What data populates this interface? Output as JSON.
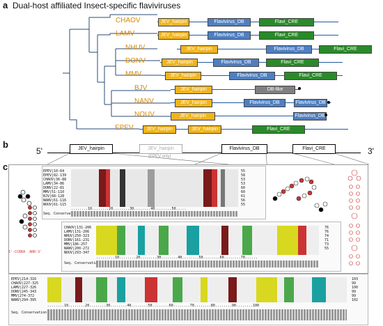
{
  "panel_a": {
    "letter": "a",
    "title": "Dual-host affiliated Insect-specific flaviviruses",
    "viruses": [
      {
        "name": "CHAOV",
        "domains": [
          "JEV_hairpin",
          "Flavivirus_DB",
          "Flavi_CRE"
        ]
      },
      {
        "name": "LAMV",
        "domains": [
          "JEV_hairpin",
          "Flavivirus_DB",
          "Flavi_CRE"
        ]
      },
      {
        "name": "NHUV",
        "domains": [
          "JEV_hairpin",
          "Flavivirus_DB",
          "Flavi_CRE"
        ]
      },
      {
        "name": "DONV",
        "domains": [
          "JEV_hairpin",
          "Flavivirus_DB",
          "Flavi_CRE"
        ]
      },
      {
        "name": "MMV",
        "domains": [
          "JEV_hairpin",
          "Flavivirus_DB",
          "Flavi_CRE"
        ]
      },
      {
        "name": "BJV",
        "domains": [
          "JEV_hairpin",
          "DB-like"
        ]
      },
      {
        "name": "NANV",
        "domains": [
          "JEV_hairpin",
          "Flavivirus_DB",
          "Flavivirus_DB"
        ]
      },
      {
        "name": "NOUV",
        "domains": [
          "JEV_hairpin",
          "Flavivirus_DB"
        ]
      },
      {
        "name": "EPEV",
        "domains": [
          "JEV_hairpin",
          "JEV_hairpin",
          "Flavi_CRE"
        ]
      }
    ],
    "colors": {
      "jev": "#f0b41c",
      "db": "#4f7fc0",
      "cre": "#2a8a2a",
      "dblike": "#808080",
      "virus_text": "#d98a00"
    }
  },
  "panel_b": {
    "letter": "b",
    "five_prime": "5'",
    "three_prime": "3'",
    "boxes": [
      "JEV_hairpin",
      "JEV_hairpin",
      "Flavivirus_DB",
      "Flavi_CRE"
    ],
    "epev_note": "(EPEV only)"
  },
  "panel_c": {
    "letter": "c",
    "align1": {
      "names": [
        "EPEV|10-64",
        "EPEV|82-139",
        "CHAOV|36-88",
        "LAMV|34-86",
        "DONV|22-81",
        "MMV|51-110",
        "BJV|68-128",
        "NANV|61-116",
        "NOUV|61-115"
      ],
      "ends": [
        "55",
        "58",
        "53",
        "53",
        "60",
        "60",
        "61",
        "56",
        "55"
      ],
      "ruler": "........10........20........30........40........50.....",
      "cons_label": "Seq. Conservation:"
    },
    "align2": {
      "names": [
        "CHAOV|131-206",
        "LAMV|131-206",
        "NHUV|250-323",
        "DONV|161-231",
        "MMV|186-257",
        "NANV|200-272",
        "NOUV|293-347"
      ],
      "ends": [
        "76",
        "76",
        "74",
        "71",
        "",
        "73",
        "55"
      ],
      "ruler": ".........10........20........30........40........50........60........70......",
      "cons_label": "Seq. Conservation:"
    },
    "align3": {
      "names": [
        "EPEV|214-316",
        "CHAOV|227-325",
        "LAMV|227-326",
        "DONV|245-343",
        "MMV|274-372",
        "NANV|294-395"
      ],
      "ends": [
        "103",
        "99",
        "100",
        "99",
        "99",
        "102"
      ],
      "ruler": "........10........20........30........40........50........60........70........80........90........100",
      "cons_label": "Seq. Conservation:"
    },
    "sl_left_bottom": "5'-CCRRA  ARR-3'"
  }
}
